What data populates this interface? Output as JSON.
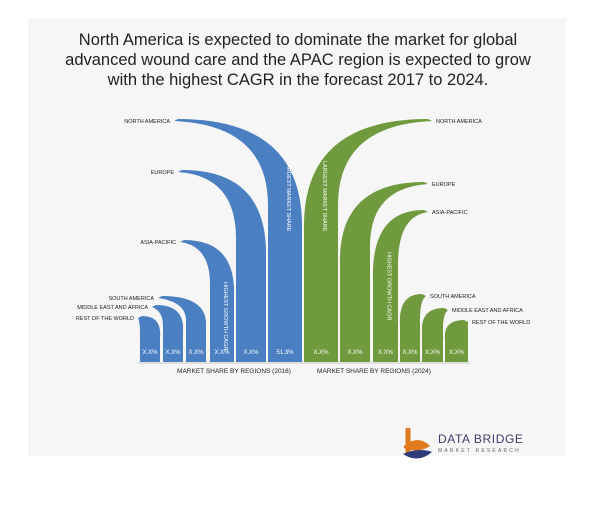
{
  "headline": "North America is expected to dominate the market for global advanced wound care and the APAC region is expected to grow with the highest CAGR in the forecast 2017 to 2024.",
  "colors": {
    "left": "#4a7fc1",
    "right": "#6f9a3d",
    "panel": "#f6f6f6"
  },
  "chart_data": {
    "type": "bar",
    "left": {
      "axis_label": "MARKET SHARE BY REGIONS (2016)",
      "bars": [
        {
          "region": "REST OF THE WORLD",
          "value_label": "X.X%"
        },
        {
          "region": "MIDDLE EAST AND AFRICA",
          "value_label": "X.X%"
        },
        {
          "region": "SOUTH AMERICA",
          "value_label": "X.X%"
        },
        {
          "region": "ASIA-PACIFIC",
          "value_label": "X.X%",
          "annotation": "HIGHEST GROWTH CAGR"
        },
        {
          "region": "EUROPE",
          "value_label": "X.X%"
        },
        {
          "region": "NORTH AMERICA",
          "value_label": "51.3%",
          "annotation": "LARGEST MARKET SHARE"
        }
      ]
    },
    "right": {
      "axis_label": "MARKET SHARE BY REGIONS (2024)",
      "bars": [
        {
          "region": "NORTH AMERICA",
          "value_label": "X.X%",
          "annotation": "LARGEST MARKET SHARE"
        },
        {
          "region": "EUROPE",
          "value_label": "X.X%"
        },
        {
          "region": "ASIA-PACIFIC",
          "value_label": "X.X%",
          "annotation": "HIGHEST GROWTH CAGR"
        },
        {
          "region": "SOUTH AMERICA",
          "value_label": "X.X%"
        },
        {
          "region": "MIDDLE EAST AND AFRICA",
          "value_label": "X.X%"
        },
        {
          "region": "REST OF THE WORLD",
          "value_label": "X.X%"
        }
      ]
    }
  },
  "logo": {
    "title": "DATA BRIDGE",
    "subtitle": "MARKET RESEARCH"
  }
}
